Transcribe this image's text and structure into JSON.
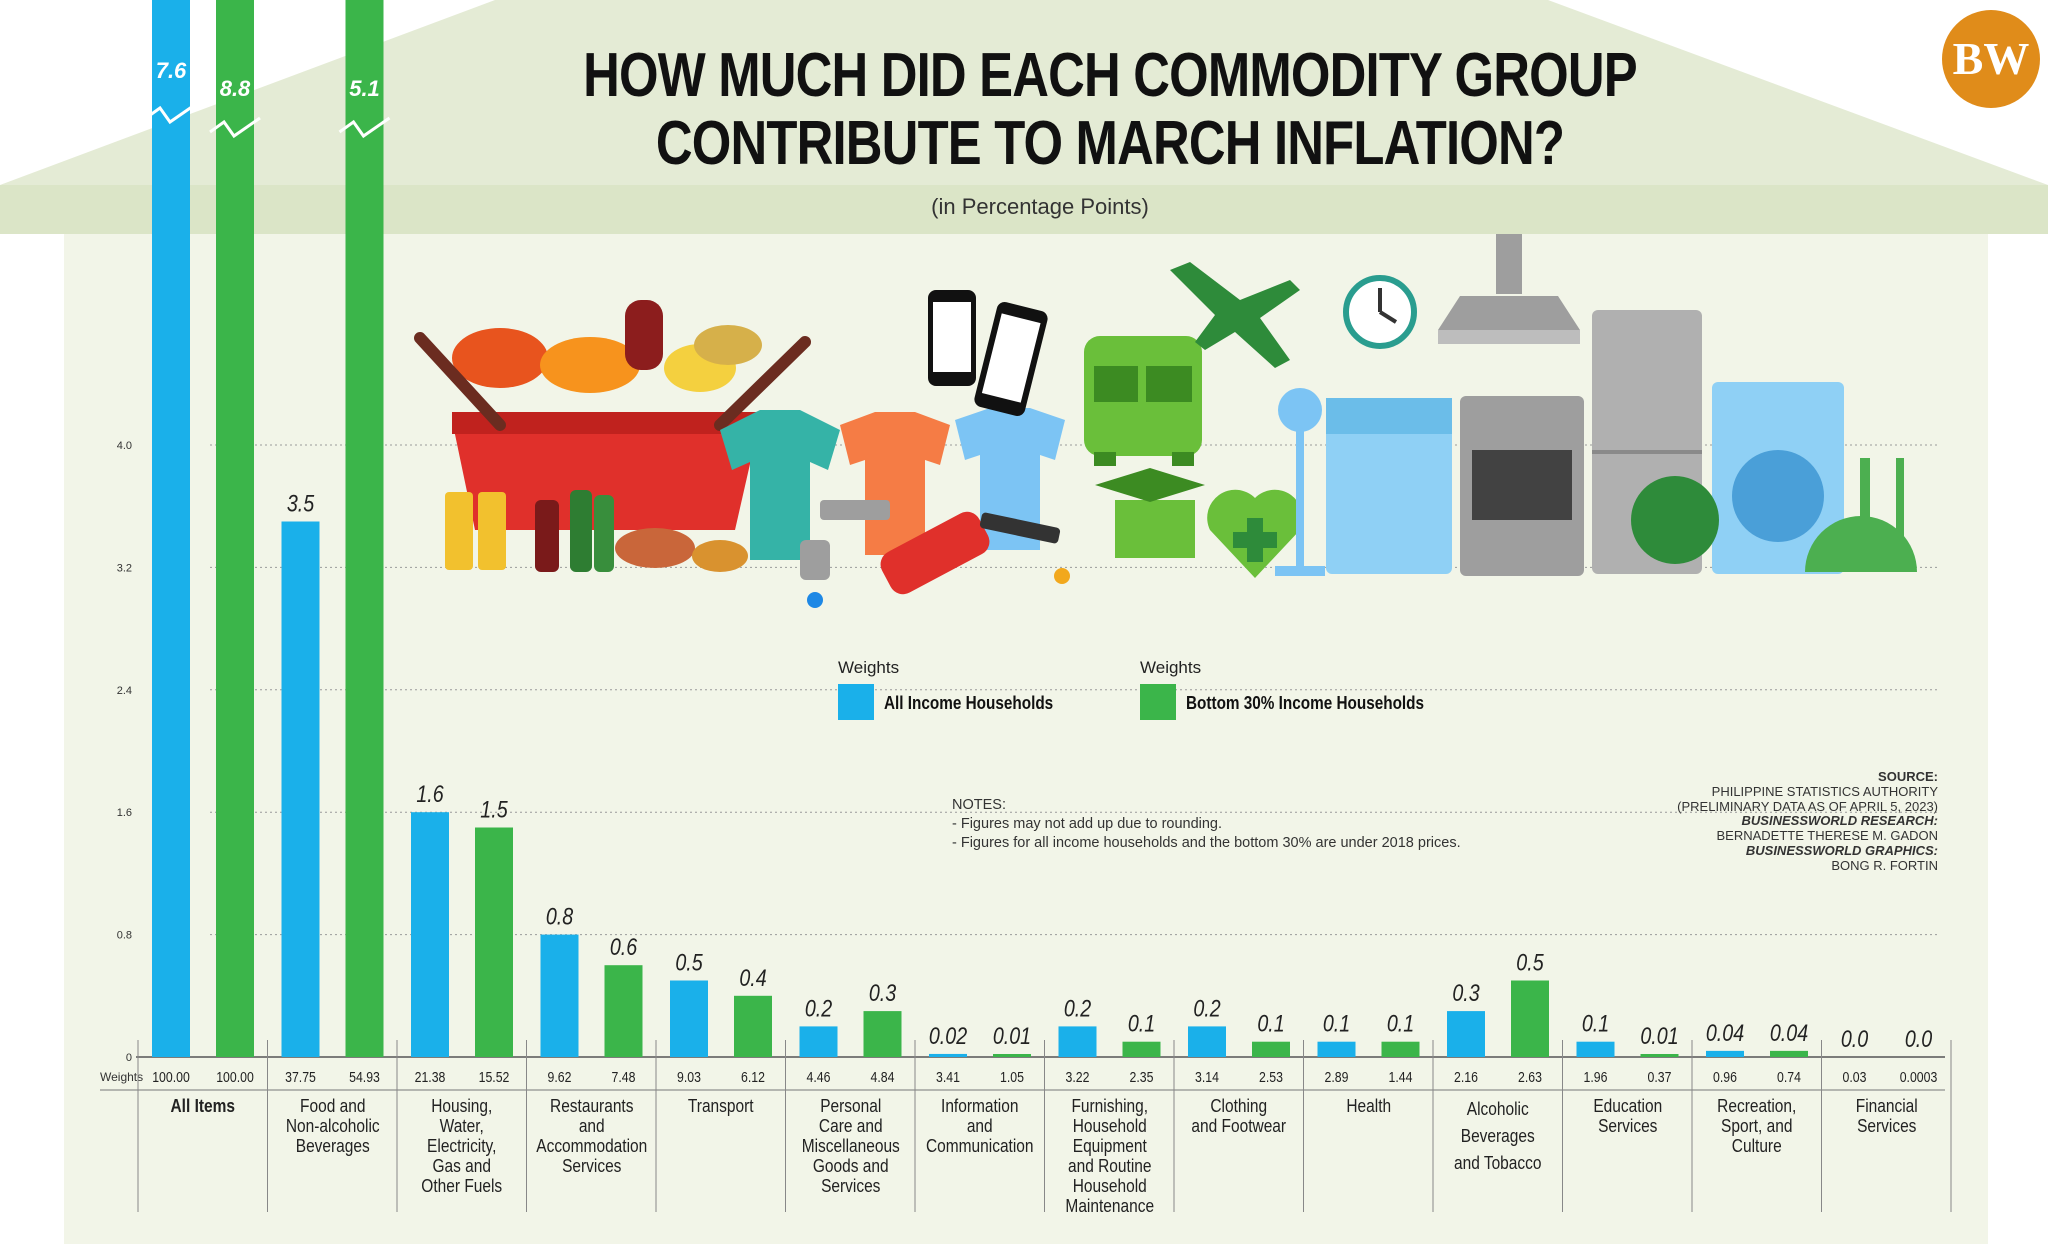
{
  "title_lines": [
    "HOW MUCH DID EACH COMMODITY GROUP",
    "CONTRIBUTE TO MARCH INFLATION?"
  ],
  "subtitle": "(in Percentage Points)",
  "logo": "BW",
  "legend": {
    "all": {
      "head": "Weights",
      "label": "All Income Households",
      "color": "#1ab0ea"
    },
    "bottom": {
      "head": "Weights",
      "label": "Bottom 30% Income Households",
      "color": "#3bb54a"
    }
  },
  "notes": {
    "heading": "NOTES:",
    "lines": [
      "- Figures may not add up due to rounding.",
      "- Figures for all income households and the bottom 30% are under 2018 prices."
    ]
  },
  "source": {
    "source_label": "SOURCE:",
    "source_lines": [
      "PHILIPPINE STATISTICS AUTHORITY",
      "(PRELIMINARY DATA AS OF APRIL 5, 2023)"
    ],
    "research_label": "BUSINESSWORLD RESEARCH:",
    "research_name": "BERNADETTE THERESE M. GADON",
    "graphics_label": "BUSINESSWORLD GRAPHICS:",
    "graphics_name": "BONG R. FORTIN"
  },
  "weights_label": "Weights",
  "illustration_icons": [
    "grocery-basket-icon",
    "shirts-icon",
    "mobile-phones-icon",
    "fuel-nozzle-icon",
    "faucet-icon",
    "bus-icon",
    "airplane-icon",
    "graduation-cap-icon",
    "health-heart-icon",
    "electric-fan-icon",
    "wall-clock-icon",
    "range-hood-icon",
    "dishwasher-icon",
    "stove-oven-icon",
    "refrigerator-icon",
    "washing-machine-icon",
    "dining-cloche-icon"
  ],
  "colors": {
    "all": "#1ab0ea",
    "bottom": "#3bb54a",
    "background": "#f2f5e8",
    "roof": "#e4ebd5",
    "band": "#dbe5c7",
    "logo": "#e08c1a"
  },
  "chart_data": {
    "type": "bar",
    "title": "HOW MUCH DID EACH COMMODITY GROUP CONTRIBUTE TO MARCH INFLATION?",
    "subtitle": "(in Percentage Points)",
    "y_ticks": [
      "0",
      "0.8",
      "1.6",
      "2.4",
      "3.2",
      "4.0"
    ],
    "ylim": [
      0,
      4.0
    ],
    "grid": true,
    "legend_position": "middle-center",
    "axis_break": "first category bars truncated above 4.0",
    "categories": [
      "All Items",
      "Food and Non-alcoholic Beverages",
      "Housing, Water, Electricity, Gas and Other Fuels",
      "Restaurants and Accommodation Services",
      "Transport",
      "Personal Care and Miscellaneous Goods and Services",
      "Information and Communication",
      "Furnishing, Household Equipment and Routine Household Maintenance",
      "Clothing and Footwear",
      "Health",
      "Alcoholic Beverages and Tobacco",
      "Education Services",
      "Recreation, Sport, and Culture",
      "Financial Services"
    ],
    "category_lines": [
      [
        "All Items"
      ],
      [
        "Food and",
        "Non-alcoholic",
        "Beverages"
      ],
      [
        "Housing,",
        "Water,",
        "Electricity,",
        "Gas and",
        "Other Fuels"
      ],
      [
        "Restaurants and",
        "Accommodation",
        "Services"
      ],
      [
        "Transport"
      ],
      [
        "Personal",
        "Care and",
        "Miscellaneous",
        "Goods and",
        "Services"
      ],
      [
        "Information",
        "and",
        "Communication"
      ],
      [
        "Furnishing,",
        "Household",
        "Equipment",
        "and Routine",
        "Household",
        "Maintenance"
      ],
      [
        "Clothing",
        "and Footwear"
      ],
      [
        "Health"
      ],
      [
        "Alcoholic",
        "Beverages",
        "and Tobacco"
      ],
      [
        "Education",
        "Services"
      ],
      [
        "Recreation,",
        "Sport, and",
        "Culture"
      ],
      [
        "Financial",
        "Services"
      ]
    ],
    "series": [
      {
        "name": "All Income Households",
        "color": "#1ab0ea",
        "values": [
          7.6,
          3.5,
          1.6,
          0.8,
          0.5,
          0.2,
          0.02,
          0.2,
          0.2,
          0.1,
          0.3,
          0.1,
          0.04,
          0.0
        ],
        "labels": [
          "7.6",
          "3.5",
          "1.6",
          "0.8",
          "0.5",
          "0.2",
          "0.02",
          "0.2",
          "0.2",
          "0.1",
          "0.3",
          "0.1",
          "0.04",
          "0.0"
        ],
        "weights": [
          "100.00",
          "37.75",
          "21.38",
          "9.62",
          "9.03",
          "4.46",
          "3.41",
          "3.22",
          "3.14",
          "2.89",
          "2.16",
          "1.96",
          "0.96",
          "0.03"
        ]
      },
      {
        "name": "Bottom 30% Income Households",
        "color": "#3bb54a",
        "values": [
          8.8,
          5.1,
          1.5,
          0.6,
          0.4,
          0.3,
          0.01,
          0.1,
          0.1,
          0.1,
          0.5,
          0.01,
          0.04,
          0.0
        ],
        "labels": [
          "8.8",
          "5.1",
          "1.5",
          "0.6",
          "0.4",
          "0.3",
          "0.01",
          "0.1",
          "0.1",
          "0.1",
          "0.5",
          "0.01",
          "0.04",
          "0.0"
        ],
        "weights": [
          "100.00",
          "54.93",
          "15.52",
          "7.48",
          "6.12",
          "4.84",
          "1.05",
          "2.35",
          "2.53",
          "1.44",
          "2.63",
          "0.37",
          "0.74",
          "0.0003"
        ]
      }
    ]
  }
}
